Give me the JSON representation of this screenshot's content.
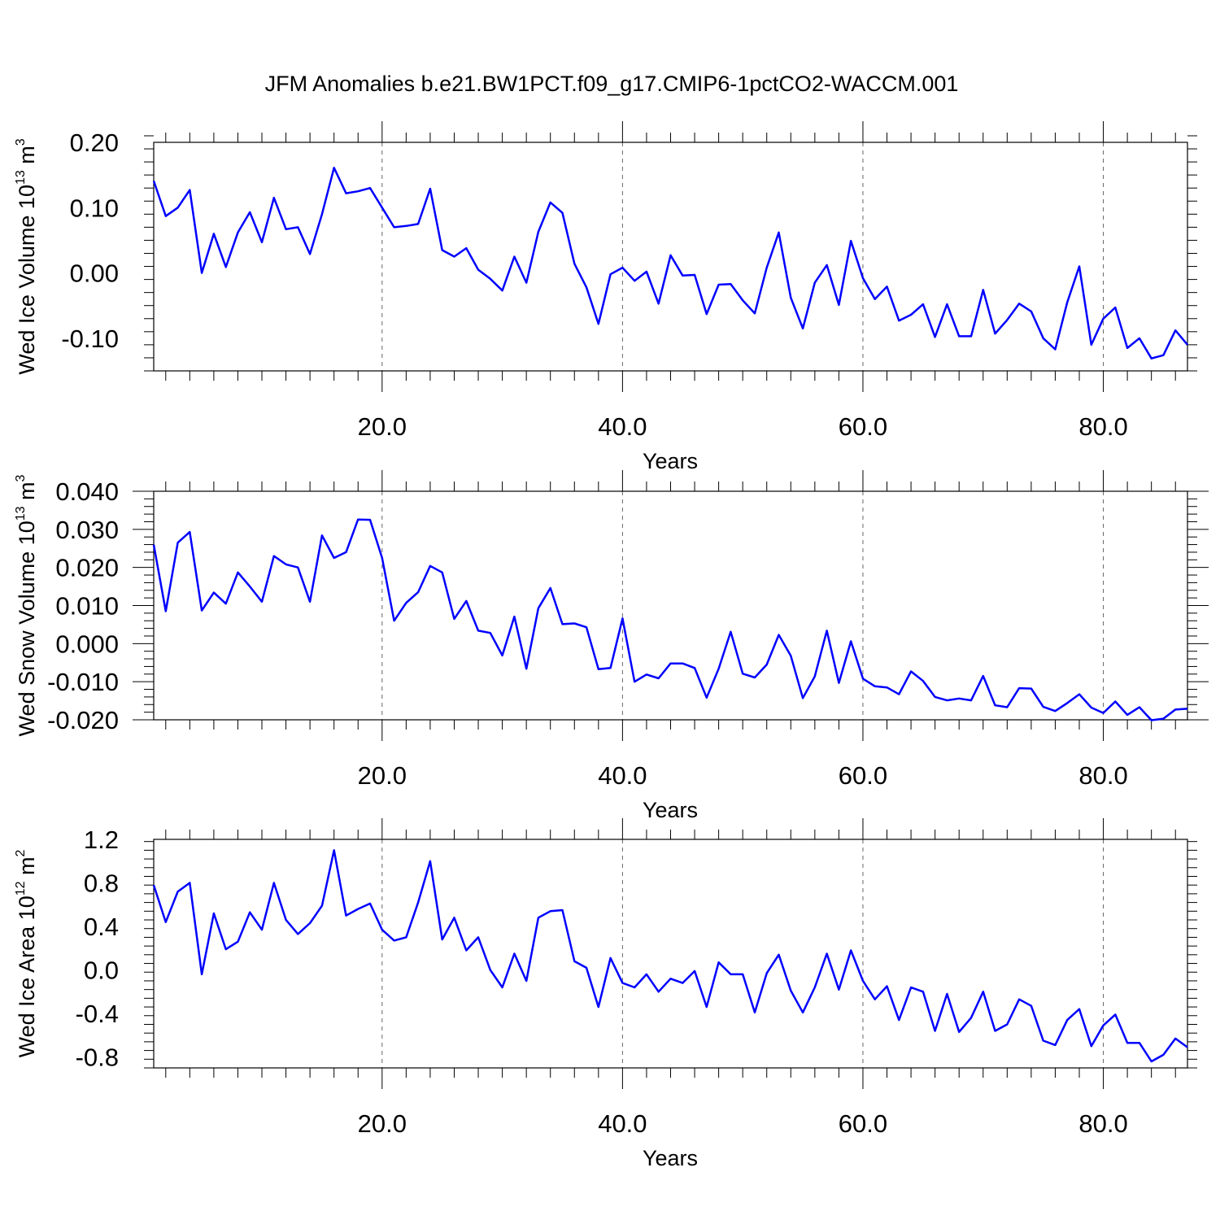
{
  "title": "JFM Anomalies b.e21.BW1PCT.f09_g17.CMIP6-1pctCO2-WACCM.001",
  "colors": {
    "series": "#0000ff",
    "grid": "#666666",
    "axis": "#000000"
  },
  "chart_data": [
    {
      "type": "line",
      "xlabel": "Years",
      "ylabel_main": "Wed Ice Volume 10",
      "ylabel_exp": "13",
      "ylabel_unit": " m",
      "ylabel_unit_exp": "3",
      "xlim": [
        1,
        87
      ],
      "ylim": [
        -0.15,
        0.2
      ],
      "x_ticks": [
        20,
        40,
        60,
        80
      ],
      "x_tick_labels": [
        "20.0",
        "40.0",
        "60.0",
        "80.0"
      ],
      "y_ticks": [
        0.2,
        0.1,
        0.0,
        -0.1
      ],
      "y_tick_labels": [
        "0.20",
        "0.10",
        "0.00",
        "-0.10"
      ],
      "grid": "vertical dashed at x ticks",
      "x": [
        1,
        2,
        3,
        4,
        5,
        6,
        7,
        8,
        9,
        10,
        11,
        12,
        13,
        14,
        15,
        16,
        17,
        18,
        19,
        20,
        21,
        22,
        23,
        24,
        25,
        26,
        27,
        28,
        29,
        30,
        31,
        32,
        33,
        34,
        35,
        36,
        37,
        38,
        39,
        40,
        41,
        42,
        43,
        44,
        45,
        46,
        47,
        48,
        49,
        50,
        51,
        52,
        53,
        54,
        55,
        56,
        57,
        58,
        59,
        60,
        61,
        62,
        63,
        64,
        65,
        66,
        67,
        68,
        69,
        70,
        71,
        72,
        73,
        74,
        75,
        76,
        77,
        78,
        79,
        80,
        81,
        82,
        83,
        84,
        85,
        86,
        87
      ],
      "values": [
        0.141,
        0.087,
        0.1,
        0.127,
        0.0,
        0.06,
        0.009,
        0.062,
        0.093,
        0.047,
        0.115,
        0.067,
        0.07,
        0.029,
        0.09,
        0.161,
        0.122,
        0.125,
        0.13,
        0.1,
        0.07,
        0.072,
        0.075,
        0.129,
        0.035,
        0.025,
        0.038,
        0.005,
        -0.009,
        -0.027,
        0.025,
        -0.015,
        0.063,
        0.108,
        0.092,
        0.014,
        -0.022,
        -0.078,
        -0.002,
        0.008,
        -0.012,
        0.002,
        -0.047,
        0.027,
        -0.004,
        -0.003,
        -0.063,
        -0.018,
        -0.017,
        -0.042,
        -0.062,
        0.008,
        0.062,
        -0.038,
        -0.085,
        -0.015,
        0.012,
        -0.049,
        0.049,
        -0.008,
        -0.04,
        -0.021,
        -0.073,
        -0.064,
        -0.048,
        -0.098,
        -0.048,
        -0.097,
        -0.097,
        -0.026,
        -0.093,
        -0.072,
        -0.047,
        -0.059,
        -0.1,
        -0.117,
        -0.045,
        0.01,
        -0.11,
        -0.07,
        -0.053,
        -0.115,
        -0.1,
        -0.131,
        -0.126,
        -0.088,
        -0.11
      ]
    },
    {
      "type": "line",
      "xlabel": "Years",
      "ylabel_main": "Wed Snow Volume 10",
      "ylabel_exp": "13",
      "ylabel_unit": " m",
      "ylabel_unit_exp": "3",
      "xlim": [
        1,
        87
      ],
      "ylim": [
        -0.02,
        0.04
      ],
      "x_ticks": [
        20,
        40,
        60,
        80
      ],
      "x_tick_labels": [
        "20.0",
        "40.0",
        "60.0",
        "80.0"
      ],
      "y_ticks": [
        0.04,
        0.03,
        0.02,
        0.01,
        0.0,
        -0.01,
        -0.02
      ],
      "y_tick_labels": [
        "0.040",
        "0.030",
        "0.020",
        "0.010",
        "0.000",
        "-0.010",
        "-0.020"
      ],
      "grid": "vertical dashed at x ticks",
      "x": [
        1,
        2,
        3,
        4,
        5,
        6,
        7,
        8,
        9,
        10,
        11,
        12,
        13,
        14,
        15,
        16,
        17,
        18,
        19,
        20,
        21,
        22,
        23,
        24,
        25,
        26,
        27,
        28,
        29,
        30,
        31,
        32,
        33,
        34,
        35,
        36,
        37,
        38,
        39,
        40,
        41,
        42,
        43,
        44,
        45,
        46,
        47,
        48,
        49,
        50,
        51,
        52,
        53,
        54,
        55,
        56,
        57,
        58,
        59,
        60,
        61,
        62,
        63,
        64,
        65,
        66,
        67,
        68,
        69,
        70,
        71,
        72,
        73,
        74,
        75,
        76,
        77,
        78,
        79,
        80,
        81,
        82,
        83,
        84,
        85,
        86,
        87
      ],
      "values": [
        0.026,
        0.0085,
        0.0265,
        0.0293,
        0.0087,
        0.0134,
        0.0105,
        0.0187,
        0.015,
        0.011,
        0.023,
        0.0208,
        0.02,
        0.011,
        0.0284,
        0.0225,
        0.024,
        0.0326,
        0.0325,
        0.0225,
        0.006,
        0.0107,
        0.0135,
        0.0204,
        0.0187,
        0.0065,
        0.0112,
        0.0034,
        0.0028,
        -0.0031,
        0.0071,
        -0.0066,
        0.0093,
        0.0146,
        0.0051,
        0.0053,
        0.0043,
        -0.0067,
        -0.0064,
        0.0066,
        -0.01,
        -0.0081,
        -0.0091,
        -0.0052,
        -0.0052,
        -0.0064,
        -0.0142,
        -0.0066,
        0.0031,
        -0.0079,
        -0.0089,
        -0.0055,
        0.0023,
        -0.0032,
        -0.0143,
        -0.0086,
        0.0034,
        -0.0103,
        0.0006,
        -0.0092,
        -0.0112,
        -0.0115,
        -0.0133,
        -0.0073,
        -0.0098,
        -0.014,
        -0.0149,
        -0.0144,
        -0.0149,
        -0.0085,
        -0.0162,
        -0.0167,
        -0.0117,
        -0.0118,
        -0.0166,
        -0.0177,
        -0.0156,
        -0.0133,
        -0.0168,
        -0.0182,
        -0.0152,
        -0.0187,
        -0.0167,
        -0.0201,
        -0.0197,
        -0.0173,
        -0.0171
      ]
    },
    {
      "type": "line",
      "xlabel": "Years",
      "ylabel_main": "Wed Ice Area 10",
      "ylabel_exp": "12",
      "ylabel_unit": " m",
      "ylabel_unit_exp": "2",
      "xlim": [
        1,
        87
      ],
      "ylim": [
        -0.9,
        1.2
      ],
      "x_ticks": [
        20,
        40,
        60,
        80
      ],
      "x_tick_labels": [
        "20.0",
        "40.0",
        "60.0",
        "80.0"
      ],
      "y_ticks": [
        1.2,
        0.8,
        0.4,
        0.0,
        -0.4,
        -0.8
      ],
      "y_tick_labels": [
        "1.2",
        "0.8",
        "0.4",
        "0.0",
        "-0.4",
        "-0.8"
      ],
      "grid": "vertical dashed at x ticks",
      "x": [
        1,
        2,
        3,
        4,
        5,
        6,
        7,
        8,
        9,
        10,
        11,
        12,
        13,
        14,
        15,
        16,
        17,
        18,
        19,
        20,
        21,
        22,
        23,
        24,
        25,
        26,
        27,
        28,
        29,
        30,
        31,
        32,
        33,
        34,
        35,
        36,
        37,
        38,
        39,
        40,
        41,
        42,
        43,
        44,
        45,
        46,
        47,
        48,
        49,
        50,
        51,
        52,
        53,
        54,
        55,
        56,
        57,
        58,
        59,
        60,
        61,
        62,
        63,
        64,
        65,
        66,
        67,
        68,
        69,
        70,
        71,
        72,
        73,
        74,
        75,
        76,
        77,
        78,
        79,
        80,
        81,
        82,
        83,
        84,
        85,
        86,
        87
      ],
      "values": [
        0.78,
        0.44,
        0.72,
        0.8,
        -0.04,
        0.52,
        0.19,
        0.26,
        0.53,
        0.37,
        0.8,
        0.46,
        0.33,
        0.43,
        0.59,
        1.1,
        0.5,
        0.56,
        0.61,
        0.37,
        0.27,
        0.3,
        0.62,
        1.0,
        0.28,
        0.48,
        0.18,
        0.3,
        0.0,
        -0.16,
        0.15,
        -0.1,
        0.48,
        0.54,
        0.55,
        0.08,
        0.02,
        -0.34,
        0.11,
        -0.12,
        -0.16,
        -0.04,
        -0.2,
        -0.08,
        -0.12,
        -0.01,
        -0.34,
        0.07,
        -0.04,
        -0.04,
        -0.39,
        -0.03,
        0.14,
        -0.19,
        -0.39,
        -0.16,
        0.15,
        -0.18,
        0.18,
        -0.1,
        -0.27,
        -0.15,
        -0.46,
        -0.16,
        -0.2,
        -0.56,
        -0.22,
        -0.57,
        -0.44,
        -0.2,
        -0.56,
        -0.5,
        -0.27,
        -0.33,
        -0.65,
        -0.69,
        -0.46,
        -0.36,
        -0.7,
        -0.51,
        -0.41,
        -0.67,
        -0.67,
        -0.84,
        -0.78,
        -0.63,
        -0.71
      ]
    }
  ]
}
